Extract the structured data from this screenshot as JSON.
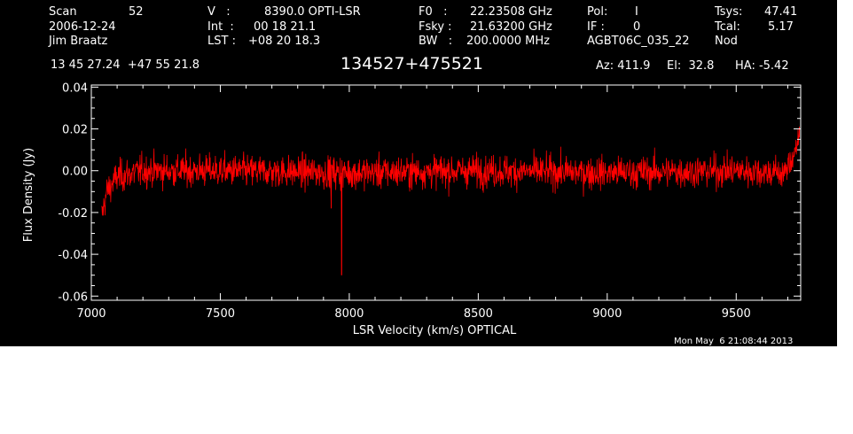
{
  "header": {
    "col1": {
      "scan_label": "Scan",
      "scan_value": "52",
      "date": "2006-12-24",
      "observer": "Jim Braatz",
      "coords": "13 45 27.24  +47 55 21.8"
    },
    "col2": {
      "v_label": "V   :",
      "v_value": "8390.0 OPTI-LSR",
      "int_label": "Int  :",
      "int_value": "00 18 21.1",
      "lst_label": "LST :",
      "lst_value": "+08 20 18.3"
    },
    "col3": {
      "f0_label": "F0   :",
      "f0_value": "22.23508 GHz",
      "fsky_label": "Fsky :",
      "fsky_value": "21.63200 GHz",
      "bw_label": "BW   :",
      "bw_value": "200.0000 MHz"
    },
    "col4": {
      "pol_label": "Pol:",
      "pol_value": "I",
      "if_label": "IF :",
      "if_value": "0",
      "project": "AGBT06C_035_22"
    },
    "col5": {
      "tsys_label": "Tsys:",
      "tsys_value": "47.41",
      "tcal_label": "Tcal:",
      "tcal_value": "5.17",
      "mode": "Nod"
    },
    "source": "134527+475521",
    "az": "Az: 411.9",
    "el": "El:  32.8",
    "ha": "HA: -5.42",
    "timestamp": "Mon May  6 21:08:44 2013"
  },
  "chart_data": {
    "type": "line",
    "xlabel": "LSR Velocity (km/s) OPTICAL",
    "ylabel": "Flux Density (Jy)",
    "xlim": [
      7000,
      9750
    ],
    "ylim": [
      -0.062,
      0.041
    ],
    "x_ticks": [
      7000,
      7500,
      8000,
      8500,
      9000,
      9500
    ],
    "y_ticks": [
      -0.06,
      -0.04,
      -0.02,
      0.0,
      0.02,
      0.04
    ],
    "y_tick_labels": [
      "-0.06",
      "-0.04",
      "-0.02",
      "0.00",
      "0.02",
      "0.04"
    ],
    "line_color": "#ff0000",
    "background": "#000000",
    "axis_color": "#ffffff",
    "series": [
      {
        "x_start": 7040,
        "x_end": 9745,
        "rms": 0.0055,
        "baseline": [
          [
            7040,
            -0.022
          ],
          [
            7060,
            -0.01
          ],
          [
            7100,
            -0.003
          ],
          [
            7200,
            0.0
          ],
          [
            7500,
            0.0
          ],
          [
            8000,
            -0.001
          ],
          [
            8500,
            0.0
          ],
          [
            9000,
            -0.001
          ],
          [
            9500,
            0.0
          ],
          [
            9690,
            -0.001
          ],
          [
            9710,
            0.004
          ],
          [
            9745,
            0.016
          ]
        ],
        "spikes": [
          {
            "x": 7970,
            "y": -0.05
          },
          {
            "x": 7930,
            "y": -0.018
          },
          {
            "x": 9745,
            "y": 0.021
          }
        ]
      }
    ]
  }
}
